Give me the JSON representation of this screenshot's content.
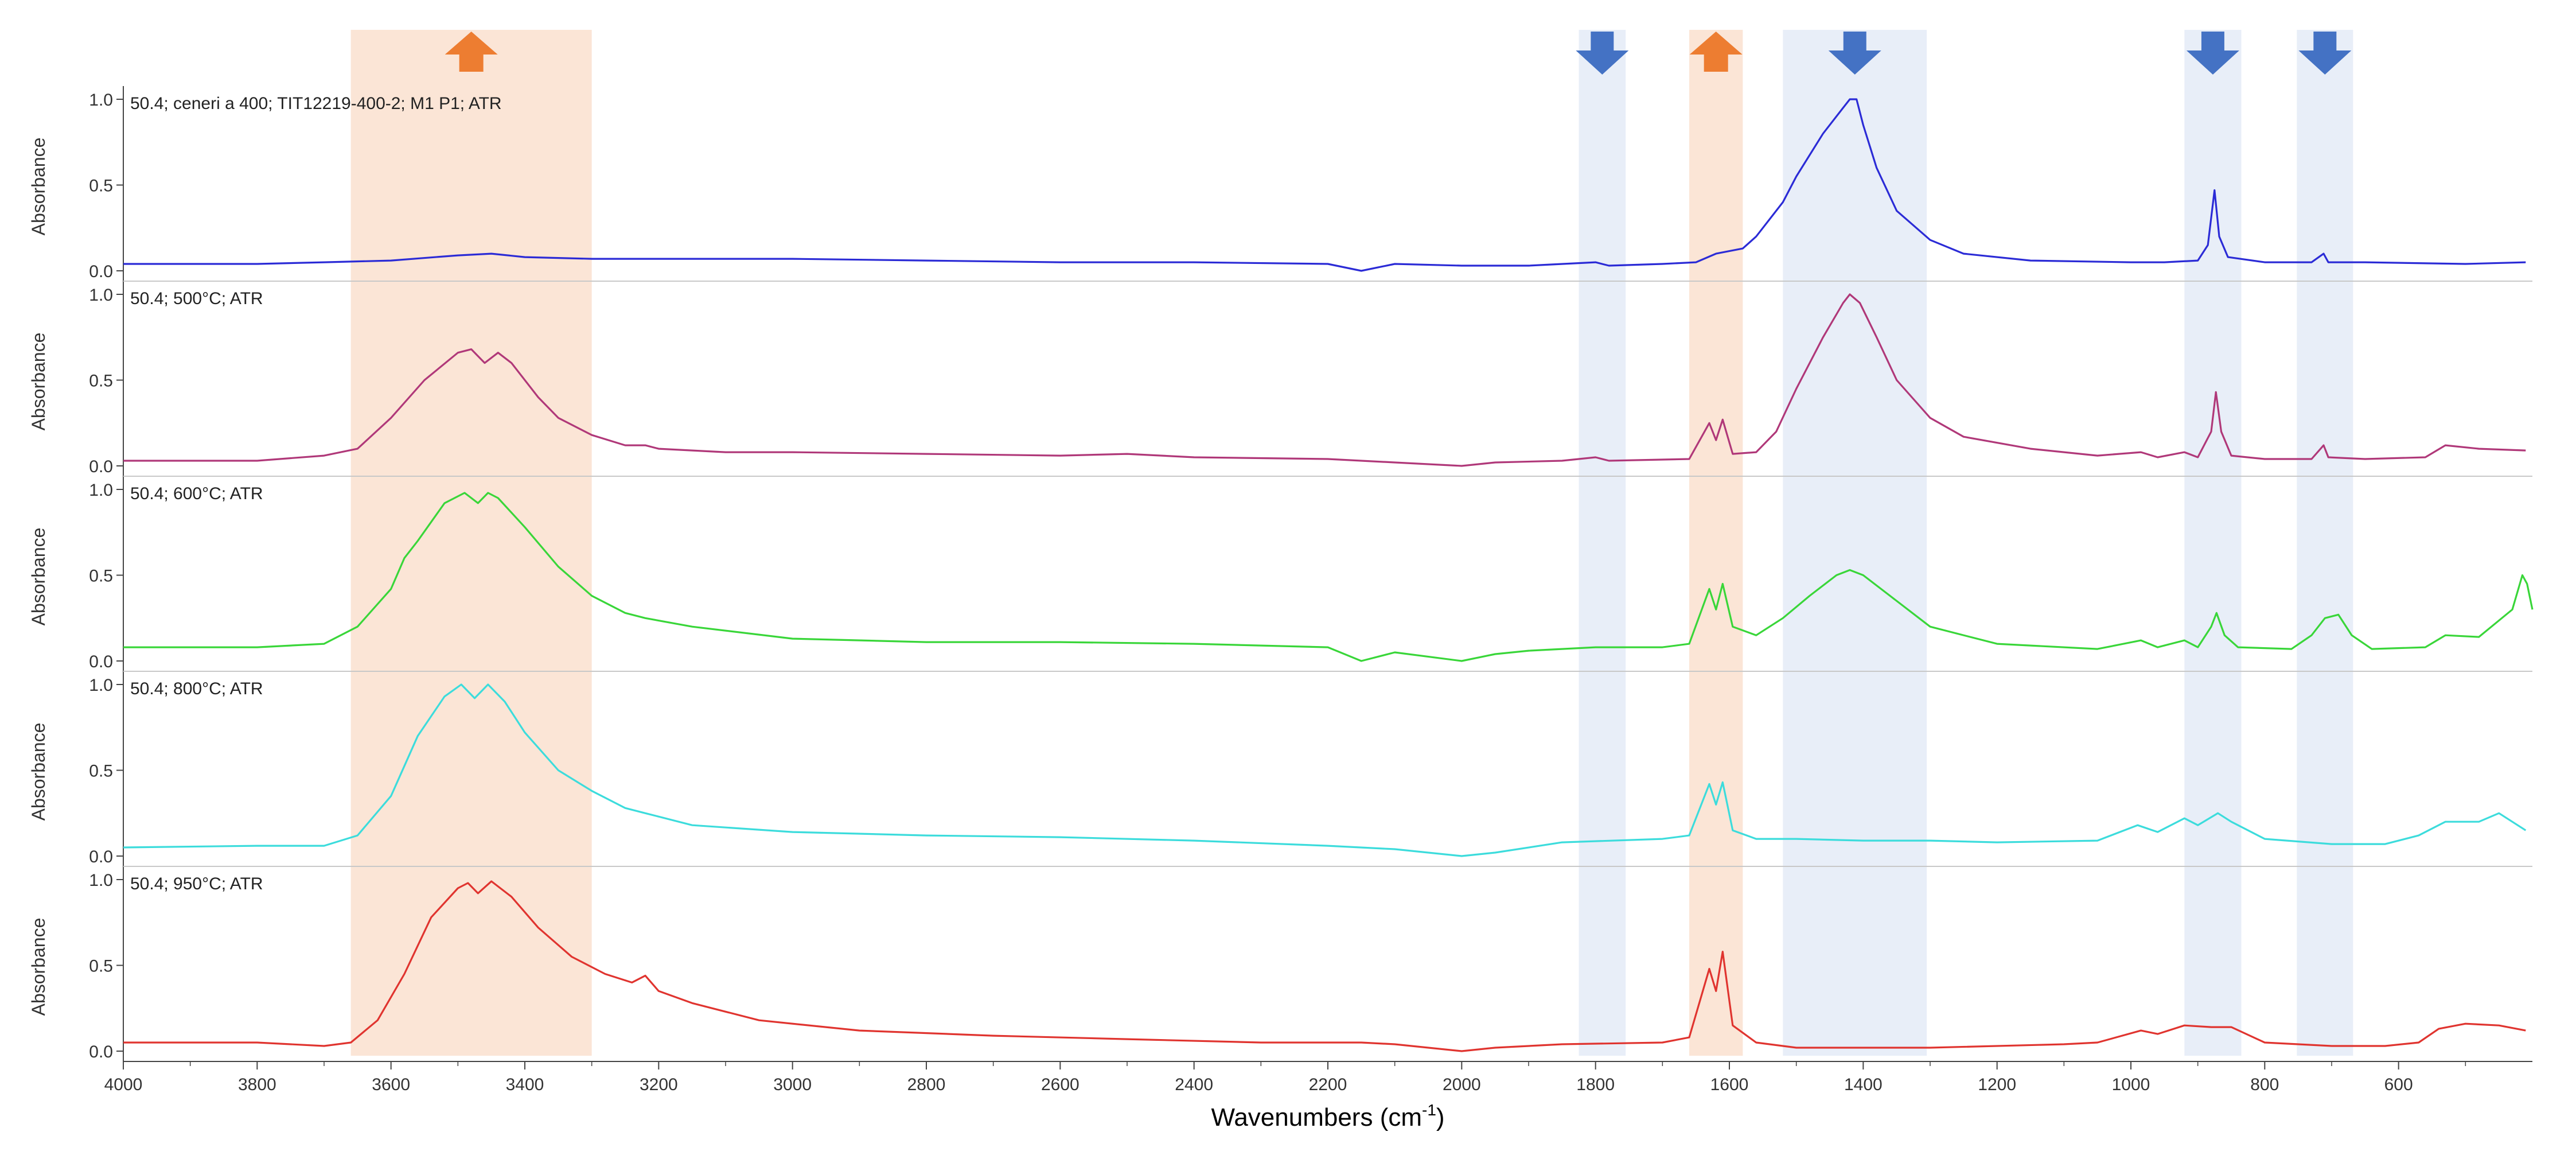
{
  "chart_data": {
    "type": "line",
    "title": "",
    "xlabel": "Wavenumbers (cm",
    "xlabel_sup": "-1",
    "xlabel_close": ")",
    "ylabel": "Absorbance",
    "xlim": [
      4000,
      400
    ],
    "x_reversed": true,
    "x_ticks": [
      4000,
      3800,
      3600,
      3400,
      3200,
      3000,
      2800,
      2600,
      2400,
      2200,
      2000,
      1800,
      1600,
      1400,
      1200,
      1000,
      800,
      600
    ],
    "y_ticks_per_panel": [
      "0.0",
      "0.5",
      "1.0"
    ],
    "ylim_per_panel": [
      0,
      1.0
    ],
    "grid": false,
    "legend": "none (series title printed in each panel)",
    "highlight_bands": [
      {
        "from": 3660,
        "to": 3300,
        "color": "#fbe5d6",
        "arrow": "up",
        "arrow_color": "#ed7d31"
      },
      {
        "from": 1825,
        "to": 1755,
        "color": "#e8eef8",
        "arrow": "down",
        "arrow_color": "#4472c4"
      },
      {
        "from": 1660,
        "to": 1580,
        "color": "#fbe5d6",
        "arrow": "up",
        "arrow_color": "#ed7d31"
      },
      {
        "from": 1520,
        "to": 1305,
        "color": "#e8eef8",
        "arrow": "down",
        "arrow_color": "#4472c4"
      },
      {
        "from": 920,
        "to": 835,
        "color": "#e8eef8",
        "arrow": "down",
        "arrow_color": "#4472c4"
      },
      {
        "from": 752,
        "to": 668,
        "color": "#e8eef8",
        "arrow": "down",
        "arrow_color": "#4472c4"
      }
    ],
    "series": [
      {
        "name": "50.4; ceneri a 400; TIT12219-400-2; M1 P1; ATR",
        "color": "#2b2bd6",
        "points": [
          [
            4000,
            0.04
          ],
          [
            3800,
            0.04
          ],
          [
            3700,
            0.05
          ],
          [
            3600,
            0.06
          ],
          [
            3500,
            0.09
          ],
          [
            3450,
            0.1
          ],
          [
            3400,
            0.08
          ],
          [
            3300,
            0.07
          ],
          [
            3200,
            0.07
          ],
          [
            3000,
            0.07
          ],
          [
            2800,
            0.06
          ],
          [
            2600,
            0.05
          ],
          [
            2400,
            0.05
          ],
          [
            2200,
            0.04
          ],
          [
            2150,
            0.0
          ],
          [
            2100,
            0.04
          ],
          [
            2000,
            0.03
          ],
          [
            1900,
            0.03
          ],
          [
            1800,
            0.05
          ],
          [
            1780,
            0.03
          ],
          [
            1700,
            0.04
          ],
          [
            1650,
            0.05
          ],
          [
            1620,
            0.1
          ],
          [
            1580,
            0.13
          ],
          [
            1560,
            0.2
          ],
          [
            1520,
            0.4
          ],
          [
            1500,
            0.55
          ],
          [
            1460,
            0.8
          ],
          [
            1430,
            0.95
          ],
          [
            1420,
            1.0
          ],
          [
            1410,
            1.0
          ],
          [
            1400,
            0.85
          ],
          [
            1380,
            0.6
          ],
          [
            1350,
            0.35
          ],
          [
            1300,
            0.18
          ],
          [
            1250,
            0.1
          ],
          [
            1150,
            0.06
          ],
          [
            1000,
            0.05
          ],
          [
            950,
            0.05
          ],
          [
            900,
            0.06
          ],
          [
            885,
            0.15
          ],
          [
            875,
            0.47
          ],
          [
            868,
            0.2
          ],
          [
            855,
            0.08
          ],
          [
            800,
            0.05
          ],
          [
            730,
            0.05
          ],
          [
            712,
            0.1
          ],
          [
            705,
            0.05
          ],
          [
            650,
            0.05
          ],
          [
            500,
            0.04
          ],
          [
            410,
            0.05
          ]
        ]
      },
      {
        "name": "50.4; 500°C; ATR",
        "color": "#b03879",
        "points": [
          [
            4000,
            0.03
          ],
          [
            3800,
            0.03
          ],
          [
            3700,
            0.06
          ],
          [
            3650,
            0.1
          ],
          [
            3600,
            0.28
          ],
          [
            3550,
            0.5
          ],
          [
            3500,
            0.66
          ],
          [
            3480,
            0.68
          ],
          [
            3460,
            0.6
          ],
          [
            3440,
            0.66
          ],
          [
            3420,
            0.6
          ],
          [
            3380,
            0.4
          ],
          [
            3350,
            0.28
          ],
          [
            3300,
            0.18
          ],
          [
            3250,
            0.12
          ],
          [
            3220,
            0.12
          ],
          [
            3200,
            0.1
          ],
          [
            3100,
            0.08
          ],
          [
            3000,
            0.08
          ],
          [
            2800,
            0.07
          ],
          [
            2600,
            0.06
          ],
          [
            2500,
            0.07
          ],
          [
            2400,
            0.05
          ],
          [
            2200,
            0.04
          ],
          [
            2100,
            0.02
          ],
          [
            2000,
            0.0
          ],
          [
            1950,
            0.02
          ],
          [
            1850,
            0.03
          ],
          [
            1800,
            0.05
          ],
          [
            1780,
            0.03
          ],
          [
            1660,
            0.04
          ],
          [
            1630,
            0.25
          ],
          [
            1620,
            0.15
          ],
          [
            1610,
            0.27
          ],
          [
            1595,
            0.07
          ],
          [
            1560,
            0.08
          ],
          [
            1530,
            0.2
          ],
          [
            1500,
            0.45
          ],
          [
            1460,
            0.75
          ],
          [
            1430,
            0.95
          ],
          [
            1420,
            1.0
          ],
          [
            1405,
            0.95
          ],
          [
            1380,
            0.75
          ],
          [
            1350,
            0.5
          ],
          [
            1300,
            0.28
          ],
          [
            1250,
            0.17
          ],
          [
            1150,
            0.1
          ],
          [
            1050,
            0.06
          ],
          [
            985,
            0.08
          ],
          [
            960,
            0.05
          ],
          [
            920,
            0.08
          ],
          [
            900,
            0.05
          ],
          [
            880,
            0.2
          ],
          [
            873,
            0.43
          ],
          [
            865,
            0.2
          ],
          [
            850,
            0.06
          ],
          [
            800,
            0.04
          ],
          [
            730,
            0.04
          ],
          [
            712,
            0.12
          ],
          [
            705,
            0.05
          ],
          [
            650,
            0.04
          ],
          [
            560,
            0.05
          ],
          [
            530,
            0.12
          ],
          [
            480,
            0.1
          ],
          [
            410,
            0.09
          ]
        ]
      },
      {
        "name": "50.4; 600°C; ATR",
        "color": "#39d639",
        "points": [
          [
            4000,
            0.08
          ],
          [
            3800,
            0.08
          ],
          [
            3700,
            0.1
          ],
          [
            3650,
            0.2
          ],
          [
            3600,
            0.42
          ],
          [
            3580,
            0.6
          ],
          [
            3560,
            0.7
          ],
          [
            3520,
            0.92
          ],
          [
            3490,
            0.98
          ],
          [
            3470,
            0.92
          ],
          [
            3455,
            0.98
          ],
          [
            3440,
            0.95
          ],
          [
            3400,
            0.78
          ],
          [
            3350,
            0.55
          ],
          [
            3300,
            0.38
          ],
          [
            3250,
            0.28
          ],
          [
            3220,
            0.25
          ],
          [
            3150,
            0.2
          ],
          [
            3000,
            0.13
          ],
          [
            2800,
            0.11
          ],
          [
            2600,
            0.11
          ],
          [
            2400,
            0.1
          ],
          [
            2200,
            0.08
          ],
          [
            2150,
            0.0
          ],
          [
            2100,
            0.05
          ],
          [
            2000,
            0.0
          ],
          [
            1950,
            0.04
          ],
          [
            1900,
            0.06
          ],
          [
            1800,
            0.08
          ],
          [
            1700,
            0.08
          ],
          [
            1660,
            0.1
          ],
          [
            1630,
            0.42
          ],
          [
            1620,
            0.3
          ],
          [
            1610,
            0.45
          ],
          [
            1595,
            0.2
          ],
          [
            1560,
            0.15
          ],
          [
            1520,
            0.25
          ],
          [
            1480,
            0.38
          ],
          [
            1440,
            0.5
          ],
          [
            1420,
            0.53
          ],
          [
            1400,
            0.5
          ],
          [
            1360,
            0.38
          ],
          [
            1300,
            0.2
          ],
          [
            1200,
            0.1
          ],
          [
            1050,
            0.07
          ],
          [
            985,
            0.12
          ],
          [
            960,
            0.08
          ],
          [
            920,
            0.12
          ],
          [
            900,
            0.08
          ],
          [
            880,
            0.2
          ],
          [
            872,
            0.28
          ],
          [
            860,
            0.15
          ],
          [
            840,
            0.08
          ],
          [
            760,
            0.07
          ],
          [
            730,
            0.15
          ],
          [
            710,
            0.25
          ],
          [
            690,
            0.27
          ],
          [
            670,
            0.15
          ],
          [
            640,
            0.07
          ],
          [
            560,
            0.08
          ],
          [
            530,
            0.15
          ],
          [
            480,
            0.14
          ],
          [
            430,
            0.3
          ],
          [
            415,
            0.5
          ],
          [
            408,
            0.45
          ],
          [
            400,
            0.3
          ]
        ]
      },
      {
        "name": "50.4; 800°C; ATR",
        "color": "#3cdcdc",
        "points": [
          [
            4000,
            0.05
          ],
          [
            3800,
            0.06
          ],
          [
            3700,
            0.06
          ],
          [
            3650,
            0.12
          ],
          [
            3600,
            0.35
          ],
          [
            3560,
            0.7
          ],
          [
            3520,
            0.93
          ],
          [
            3495,
            1.0
          ],
          [
            3475,
            0.92
          ],
          [
            3455,
            1.0
          ],
          [
            3430,
            0.9
          ],
          [
            3400,
            0.72
          ],
          [
            3350,
            0.5
          ],
          [
            3300,
            0.38
          ],
          [
            3250,
            0.28
          ],
          [
            3220,
            0.25
          ],
          [
            3150,
            0.18
          ],
          [
            3000,
            0.14
          ],
          [
            2800,
            0.12
          ],
          [
            2600,
            0.11
          ],
          [
            2400,
            0.09
          ],
          [
            2200,
            0.06
          ],
          [
            2100,
            0.04
          ],
          [
            2000,
            0.0
          ],
          [
            1950,
            0.02
          ],
          [
            1850,
            0.08
          ],
          [
            1700,
            0.1
          ],
          [
            1660,
            0.12
          ],
          [
            1630,
            0.42
          ],
          [
            1620,
            0.3
          ],
          [
            1610,
            0.43
          ],
          [
            1595,
            0.15
          ],
          [
            1560,
            0.1
          ],
          [
            1500,
            0.1
          ],
          [
            1400,
            0.09
          ],
          [
            1300,
            0.09
          ],
          [
            1200,
            0.08
          ],
          [
            1050,
            0.09
          ],
          [
            990,
            0.18
          ],
          [
            960,
            0.14
          ],
          [
            920,
            0.22
          ],
          [
            900,
            0.18
          ],
          [
            870,
            0.25
          ],
          [
            850,
            0.2
          ],
          [
            800,
            0.1
          ],
          [
            700,
            0.07
          ],
          [
            620,
            0.07
          ],
          [
            570,
            0.12
          ],
          [
            530,
            0.2
          ],
          [
            480,
            0.2
          ],
          [
            450,
            0.25
          ],
          [
            410,
            0.15
          ]
        ]
      },
      {
        "name": "50.4; 950°C; ATR",
        "color": "#e0342f",
        "points": [
          [
            4000,
            0.05
          ],
          [
            3800,
            0.05
          ],
          [
            3700,
            0.03
          ],
          [
            3660,
            0.05
          ],
          [
            3620,
            0.18
          ],
          [
            3580,
            0.45
          ],
          [
            3540,
            0.78
          ],
          [
            3500,
            0.95
          ],
          [
            3485,
            0.98
          ],
          [
            3470,
            0.92
          ],
          [
            3450,
            0.99
          ],
          [
            3420,
            0.9
          ],
          [
            3380,
            0.72
          ],
          [
            3330,
            0.55
          ],
          [
            3280,
            0.45
          ],
          [
            3240,
            0.4
          ],
          [
            3220,
            0.44
          ],
          [
            3200,
            0.35
          ],
          [
            3150,
            0.28
          ],
          [
            3050,
            0.18
          ],
          [
            2900,
            0.12
          ],
          [
            2700,
            0.09
          ],
          [
            2500,
            0.07
          ],
          [
            2300,
            0.05
          ],
          [
            2150,
            0.05
          ],
          [
            2100,
            0.04
          ],
          [
            2000,
            0.0
          ],
          [
            1950,
            0.02
          ],
          [
            1850,
            0.04
          ],
          [
            1700,
            0.05
          ],
          [
            1660,
            0.08
          ],
          [
            1630,
            0.48
          ],
          [
            1620,
            0.35
          ],
          [
            1610,
            0.58
          ],
          [
            1595,
            0.15
          ],
          [
            1560,
            0.05
          ],
          [
            1500,
            0.02
          ],
          [
            1400,
            0.02
          ],
          [
            1300,
            0.02
          ],
          [
            1100,
            0.04
          ],
          [
            1050,
            0.05
          ],
          [
            985,
            0.12
          ],
          [
            960,
            0.1
          ],
          [
            920,
            0.15
          ],
          [
            880,
            0.14
          ],
          [
            850,
            0.14
          ],
          [
            800,
            0.05
          ],
          [
            700,
            0.03
          ],
          [
            620,
            0.03
          ],
          [
            570,
            0.05
          ],
          [
            540,
            0.13
          ],
          [
            500,
            0.16
          ],
          [
            450,
            0.15
          ],
          [
            410,
            0.12
          ]
        ]
      }
    ]
  }
}
